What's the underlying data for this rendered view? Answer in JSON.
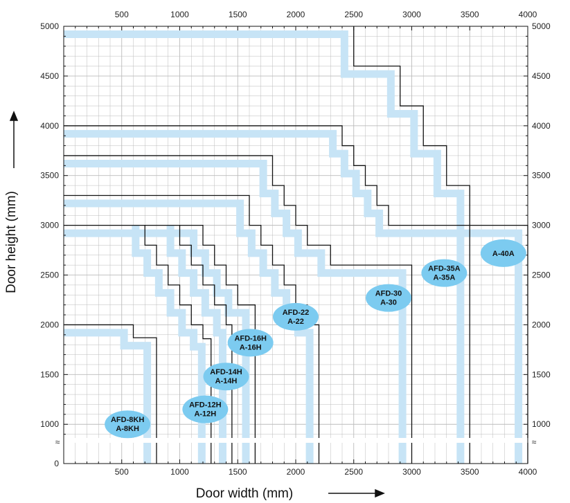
{
  "chart_data": {
    "type": "line",
    "xlabel": "Door width (mm)",
    "ylabel": "Door height (mm)",
    "xlim": [
      0,
      4000
    ],
    "ylim": [
      0,
      5000
    ],
    "x_ticks": [
      "500",
      "1000",
      "1500",
      "2000",
      "2500",
      "3000",
      "3500",
      "4000"
    ],
    "y_ticks": [
      "0",
      "1000",
      "1500",
      "2000",
      "2500",
      "3000",
      "3500",
      "4000",
      "4500",
      "5000"
    ],
    "axis_break_label": "≈",
    "grid": true,
    "colors": {
      "band": "#c7e4f6",
      "line": "#111111",
      "badge": "#7ccbf0",
      "grid": "#bbbbbb"
    },
    "series": [
      {
        "name": "AFD-8KH\nA-8KH",
        "label_pos": [
          550,
          1000
        ],
        "boundary": [
          [
            0,
            2000
          ],
          [
            600,
            2000
          ],
          [
            600,
            1870
          ],
          [
            800,
            1870
          ],
          [
            800,
            0
          ]
        ],
        "band": [
          [
            0,
            1920
          ],
          [
            520,
            1920
          ],
          [
            520,
            1790
          ],
          [
            720,
            1790
          ],
          [
            720,
            0
          ]
        ]
      },
      {
        "name": "AFD-12H\nA-12H",
        "label_pos": [
          1220,
          1150
        ],
        "boundary": [
          [
            700,
            3000
          ],
          [
            700,
            2800
          ],
          [
            800,
            2800
          ],
          [
            800,
            2600
          ],
          [
            900,
            2600
          ],
          [
            900,
            2400
          ],
          [
            1000,
            2400
          ],
          [
            1000,
            2200
          ],
          [
            1100,
            2200
          ],
          [
            1100,
            2000
          ],
          [
            1200,
            2000
          ],
          [
            1200,
            1860
          ],
          [
            1270,
            1860
          ],
          [
            1270,
            0
          ]
        ],
        "band": [
          [
            620,
            3000
          ],
          [
            620,
            2720
          ],
          [
            720,
            2720
          ],
          [
            720,
            2520
          ],
          [
            820,
            2520
          ],
          [
            820,
            2320
          ],
          [
            920,
            2320
          ],
          [
            920,
            2120
          ],
          [
            1020,
            2120
          ],
          [
            1020,
            1920
          ],
          [
            1120,
            1920
          ],
          [
            1120,
            1780
          ],
          [
            1190,
            1780
          ],
          [
            1190,
            0
          ]
        ]
      },
      {
        "name": "AFD-14H\nA-14H",
        "label_pos": [
          1400,
          1480
        ],
        "boundary": [
          [
            1000,
            3000
          ],
          [
            1000,
            2800
          ],
          [
            1100,
            2800
          ],
          [
            1100,
            2600
          ],
          [
            1200,
            2600
          ],
          [
            1200,
            2400
          ],
          [
            1300,
            2400
          ],
          [
            1300,
            2200
          ],
          [
            1400,
            2200
          ],
          [
            1400,
            2000
          ],
          [
            1450,
            2000
          ],
          [
            1450,
            0
          ]
        ],
        "band": [
          [
            920,
            3000
          ],
          [
            920,
            2720
          ],
          [
            1020,
            2720
          ],
          [
            1020,
            2520
          ],
          [
            1120,
            2520
          ],
          [
            1120,
            2320
          ],
          [
            1220,
            2320
          ],
          [
            1220,
            2120
          ],
          [
            1320,
            2120
          ],
          [
            1320,
            1920
          ],
          [
            1370,
            1920
          ],
          [
            1370,
            0
          ]
        ]
      },
      {
        "name": "AFD-16H\nA-16H",
        "label_pos": [
          1610,
          1820
        ],
        "boundary": [
          [
            0,
            3000
          ],
          [
            1200,
            3000
          ],
          [
            1200,
            2800
          ],
          [
            1300,
            2800
          ],
          [
            1300,
            2600
          ],
          [
            1400,
            2600
          ],
          [
            1400,
            2400
          ],
          [
            1500,
            2400
          ],
          [
            1500,
            2200
          ],
          [
            1650,
            2200
          ],
          [
            1650,
            0
          ]
        ],
        "band": [
          [
            0,
            2920
          ],
          [
            1120,
            2920
          ],
          [
            1120,
            2720
          ],
          [
            1220,
            2720
          ],
          [
            1220,
            2520
          ],
          [
            1320,
            2520
          ],
          [
            1320,
            2320
          ],
          [
            1420,
            2320
          ],
          [
            1420,
            2120
          ],
          [
            1570,
            2120
          ],
          [
            1570,
            0
          ]
        ]
      },
      {
        "name": "AFD-22\nA-22",
        "label_pos": [
          2000,
          2080
        ],
        "boundary": [
          [
            0,
            3300
          ],
          [
            1600,
            3300
          ],
          [
            1600,
            3000
          ],
          [
            1700,
            3000
          ],
          [
            1700,
            2800
          ],
          [
            1800,
            2800
          ],
          [
            1800,
            2600
          ],
          [
            1900,
            2600
          ],
          [
            1900,
            2400
          ],
          [
            2000,
            2400
          ],
          [
            2000,
            2200
          ],
          [
            2100,
            2200
          ],
          [
            2100,
            2000
          ],
          [
            2200,
            2000
          ],
          [
            2200,
            0
          ]
        ],
        "band": [
          [
            0,
            3220
          ],
          [
            1520,
            3220
          ],
          [
            1520,
            2920
          ],
          [
            1620,
            2920
          ],
          [
            1620,
            2720
          ],
          [
            1720,
            2720
          ],
          [
            1720,
            2520
          ],
          [
            1820,
            2520
          ],
          [
            1820,
            2320
          ],
          [
            1920,
            2320
          ],
          [
            1920,
            2120
          ],
          [
            2020,
            2120
          ],
          [
            2020,
            1920
          ],
          [
            2120,
            1920
          ],
          [
            2120,
            0
          ]
        ]
      },
      {
        "name": "AFD-30\nA-30",
        "label_pos": [
          2800,
          2270
        ],
        "boundary": [
          [
            0,
            3700
          ],
          [
            1800,
            3700
          ],
          [
            1800,
            3400
          ],
          [
            1900,
            3400
          ],
          [
            1900,
            3200
          ],
          [
            2000,
            3200
          ],
          [
            2000,
            3000
          ],
          [
            2100,
            3000
          ],
          [
            2100,
            2800
          ],
          [
            2300,
            2800
          ],
          [
            2300,
            2600
          ],
          [
            3000,
            2600
          ],
          [
            3000,
            0
          ]
        ],
        "band": [
          [
            0,
            3620
          ],
          [
            1720,
            3620
          ],
          [
            1720,
            3320
          ],
          [
            1820,
            3320
          ],
          [
            1820,
            3120
          ],
          [
            1920,
            3120
          ],
          [
            1920,
            2920
          ],
          [
            2020,
            2920
          ],
          [
            2020,
            2720
          ],
          [
            2220,
            2720
          ],
          [
            2220,
            2520
          ],
          [
            2920,
            2520
          ],
          [
            2920,
            0
          ]
        ]
      },
      {
        "name": "AFD-35A\nA-35A",
        "label_pos": [
          3280,
          2520
        ],
        "boundary": [
          [
            0,
            4000
          ],
          [
            2400,
            4000
          ],
          [
            2400,
            3800
          ],
          [
            2500,
            3800
          ],
          [
            2500,
            3600
          ],
          [
            2600,
            3600
          ],
          [
            2600,
            3400
          ],
          [
            2700,
            3400
          ],
          [
            2700,
            3200
          ],
          [
            2800,
            3200
          ],
          [
            2800,
            3000
          ],
          [
            3500,
            3000
          ],
          [
            3500,
            0
          ]
        ],
        "band": [
          [
            0,
            3920
          ],
          [
            2320,
            3920
          ],
          [
            2320,
            3720
          ],
          [
            2420,
            3720
          ],
          [
            2420,
            3520
          ],
          [
            2520,
            3520
          ],
          [
            2520,
            3320
          ],
          [
            2620,
            3320
          ],
          [
            2620,
            3120
          ],
          [
            2720,
            3120
          ],
          [
            2720,
            2920
          ],
          [
            3420,
            2920
          ],
          [
            3420,
            0
          ]
        ]
      },
      {
        "name": "A-40A",
        "label_pos": [
          3790,
          2720
        ],
        "boundary": [
          [
            2500,
            5000
          ],
          [
            2500,
            4600
          ],
          [
            2900,
            4600
          ],
          [
            2900,
            4200
          ],
          [
            3100,
            4200
          ],
          [
            3100,
            3800
          ],
          [
            3300,
            3800
          ],
          [
            3300,
            3400
          ],
          [
            3500,
            3400
          ],
          [
            3500,
            3000
          ],
          [
            4000,
            3000
          ],
          [
            4000,
            0
          ]
        ],
        "band": [
          [
            0,
            4920
          ],
          [
            2420,
            4920
          ],
          [
            2420,
            4520
          ],
          [
            2820,
            4520
          ],
          [
            2820,
            4120
          ],
          [
            3020,
            4120
          ],
          [
            3020,
            3720
          ],
          [
            3220,
            3720
          ],
          [
            3220,
            3320
          ],
          [
            3420,
            3320
          ],
          [
            3420,
            2920
          ],
          [
            3920,
            2920
          ],
          [
            3920,
            0
          ]
        ]
      }
    ]
  }
}
